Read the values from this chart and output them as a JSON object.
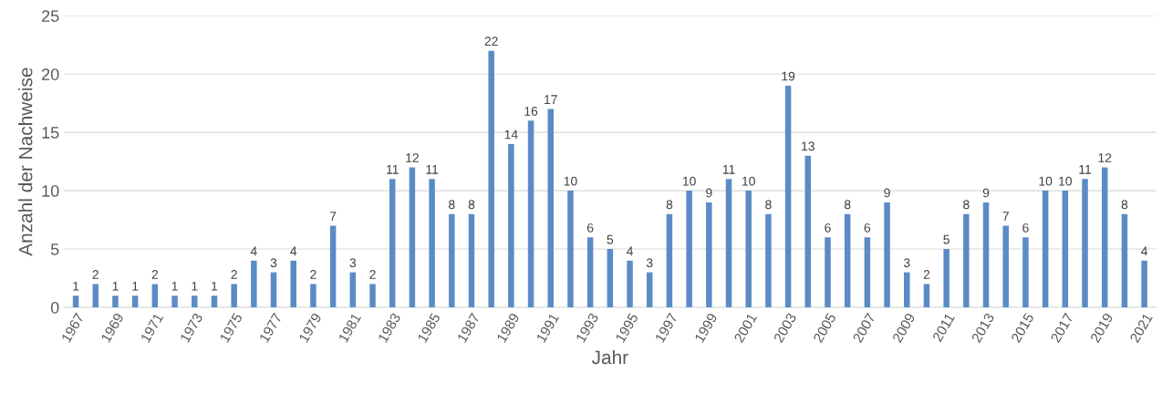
{
  "chart_data": {
    "type": "bar",
    "xlabel": "Jahr",
    "ylabel": "Anzahl der Nachweise",
    "categories": [
      "1967",
      null,
      "1969",
      null,
      "1971",
      null,
      "1973",
      null,
      "1975",
      null,
      "1977",
      null,
      "1979",
      null,
      "1981",
      null,
      "1983",
      null,
      "1985",
      null,
      "1987",
      null,
      "1989",
      null,
      "1991",
      null,
      "1993",
      null,
      "1995",
      null,
      "1997",
      null,
      "1999",
      null,
      "2001",
      null,
      "2003",
      null,
      "2005",
      null,
      "2007",
      null,
      "2009",
      null,
      "2011",
      null,
      "2013",
      null,
      "2015",
      null,
      "2017",
      null,
      "2019",
      null,
      "2021"
    ],
    "values": [
      1,
      2,
      1,
      1,
      2,
      1,
      1,
      1,
      2,
      4,
      3,
      4,
      2,
      7,
      3,
      2,
      11,
      12,
      11,
      8,
      8,
      22,
      14,
      16,
      17,
      10,
      6,
      5,
      4,
      3,
      8,
      10,
      9,
      11,
      10,
      8,
      19,
      13,
      6,
      8,
      6,
      9,
      3,
      2,
      5,
      8,
      9,
      7,
      6,
      10,
      10,
      11,
      12,
      8,
      4
    ],
    "color": "#5b8bc7",
    "ylim": [
      0,
      25
    ],
    "yticks": [
      0,
      5,
      10,
      15,
      20,
      25
    ],
    "grid": "y",
    "data_labels": true
  }
}
